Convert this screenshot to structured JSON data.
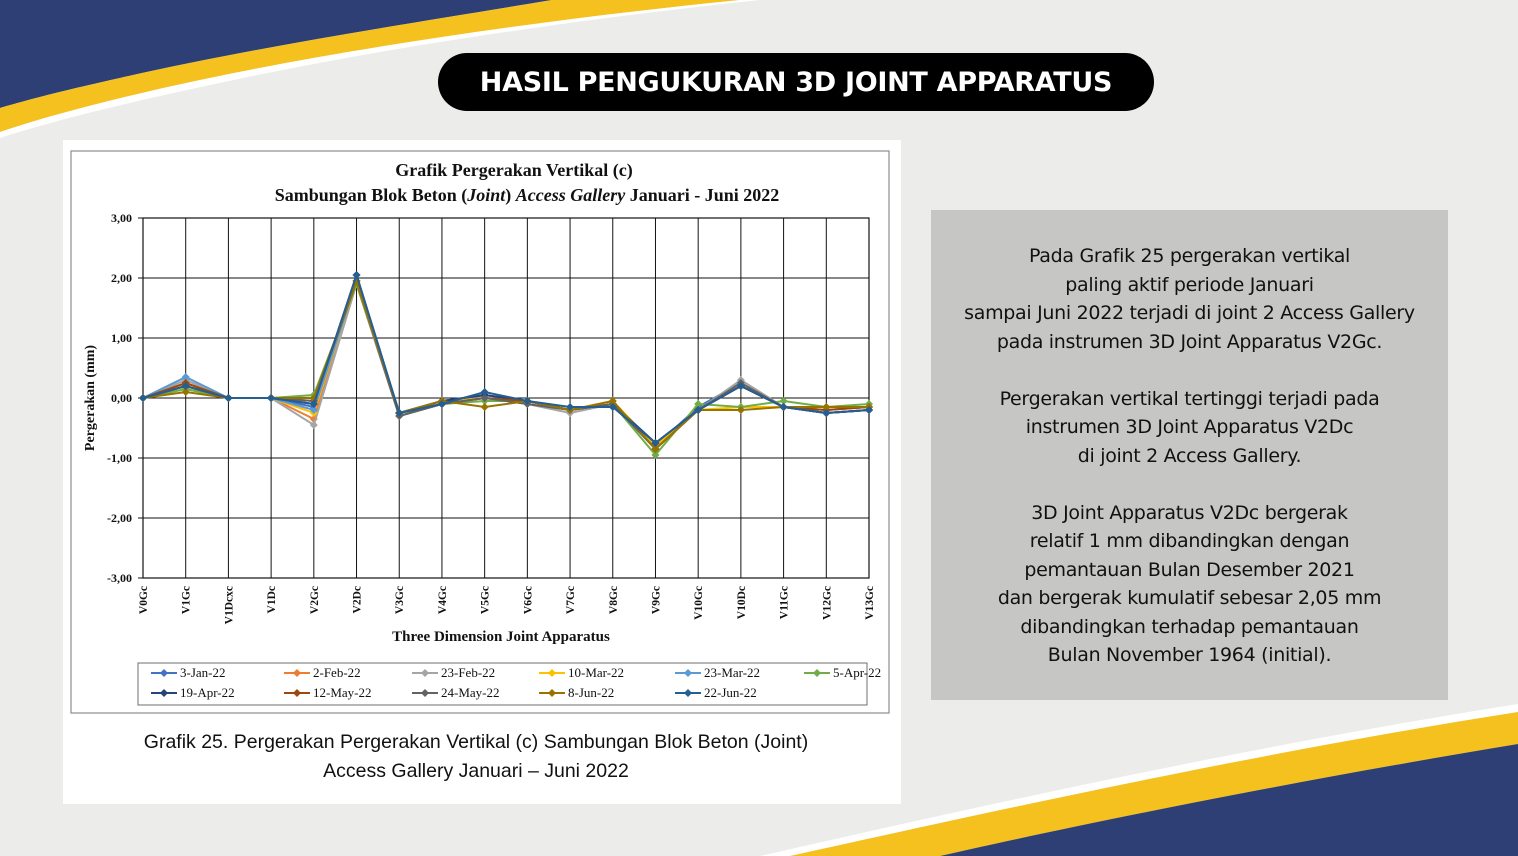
{
  "slide": {
    "title": "HASIL PENGUKURAN 3D JOINT APPARATUS",
    "caption_lines": [
      "Grafik 25. Pergerakan Pergerakan Vertikal (c) Sambungan Blok Beton (Joint)",
      "Access Gallery Januari – Juni 2022"
    ],
    "info_paragraphs": [
      [
        "Pada Grafik 25 pergerakan vertikal",
        "paling aktif periode Januari",
        "sampai Juni 2022 terjadi di joint 2 Access Gallery",
        "pada instrumen 3D Joint Apparatus V2Gc."
      ],
      [
        "Pergerakan vertikal tertinggi terjadi pada",
        "instrumen 3D Joint Apparatus V2Dc",
        "di joint 2 Access Gallery."
      ],
      [
        "3D Joint Apparatus V2Dc bergerak",
        "relatif 1 mm dibandingkan dengan",
        "pemantauan Bulan Desember 2021",
        "dan bergerak kumulatif sebesar 2,05 mm",
        "dibandingkan terhadap pemantauan",
        "Bulan November 1964 (initial)."
      ]
    ],
    "colors": {
      "navy": "#2e3f76",
      "gold": "#f4c11f",
      "background": "#ececea",
      "info_box": "#c6c6c5"
    }
  },
  "chart_data": {
    "type": "line",
    "title_line1": "Grafik Pergerakan Vertikal (c)",
    "title_line2_parts": [
      {
        "text": "Sambungan Blok Beton (",
        "italic": false
      },
      {
        "text": "Joint",
        "italic": true
      },
      {
        "text": ") ",
        "italic": false
      },
      {
        "text": "Access Gallery",
        "italic": true
      },
      {
        "text": " Januari - Juni 2022",
        "italic": false
      }
    ],
    "xlabel": "Three Dimension Joint Apparatus",
    "ylabel": "Pergerakan (mm)",
    "ylim": [
      -3,
      3
    ],
    "yticks": [
      3,
      2,
      1,
      0,
      -1,
      -2,
      -3
    ],
    "ytick_labels": [
      "3,00",
      "2,00",
      "1,00",
      "0,00",
      "-1,00",
      "-2,00",
      "-3,00"
    ],
    "grid": true,
    "legend_position": "bottom",
    "categories": [
      "V0Gc",
      "V1Gc",
      "V1Dcxc",
      "V1Dc",
      "V2Gc",
      "V2Dc",
      "V3Gc",
      "V4Gc",
      "V5Gc",
      "V6Gc",
      "V7Gc",
      "V8Gc",
      "V9Gc",
      "V10Gc",
      "V10Dc",
      "V11Gc",
      "V12Gc",
      "V13Gc"
    ],
    "series": [
      {
        "name": "3-Jan-22",
        "color": "#4472c4",
        "values": [
          0,
          0.3,
          0,
          0,
          -0.15,
          1.95,
          -0.25,
          -0.1,
          0.05,
          -0.05,
          -0.2,
          -0.1,
          -0.8,
          -0.15,
          0.25,
          -0.15,
          -0.25,
          -0.2
        ]
      },
      {
        "name": "2-Feb-22",
        "color": "#ed7d31",
        "values": [
          0,
          0.25,
          0,
          0,
          -0.35,
          1.9,
          -0.3,
          -0.1,
          0.0,
          -0.05,
          -0.2,
          -0.1,
          -0.85,
          -0.2,
          0.2,
          -0.15,
          -0.2,
          -0.15
        ]
      },
      {
        "name": "23-Feb-22",
        "color": "#a5a5a5",
        "values": [
          0,
          0.3,
          0,
          0,
          -0.45,
          1.9,
          -0.3,
          -0.1,
          0.0,
          -0.1,
          -0.25,
          -0.1,
          -0.85,
          -0.2,
          0.3,
          -0.15,
          -0.2,
          -0.15
        ]
      },
      {
        "name": "10-Mar-22",
        "color": "#ffc000",
        "values": [
          0,
          0.15,
          0,
          0,
          -0.25,
          1.95,
          -0.25,
          -0.05,
          0.0,
          -0.05,
          -0.2,
          -0.05,
          -0.8,
          -0.2,
          -0.15,
          -0.15,
          -0.15,
          -0.15
        ]
      },
      {
        "name": "23-Mar-22",
        "color": "#5b9bd5",
        "values": [
          0,
          0.35,
          0,
          0,
          -0.2,
          1.95,
          -0.25,
          -0.05,
          0.05,
          -0.05,
          -0.2,
          -0.1,
          -0.75,
          -0.2,
          0.2,
          -0.15,
          -0.25,
          -0.2
        ]
      },
      {
        "name": "5-Apr-22",
        "color": "#70ad47",
        "values": [
          0,
          0.15,
          0,
          0,
          0.05,
          1.9,
          -0.25,
          -0.1,
          -0.05,
          -0.05,
          -0.2,
          -0.1,
          -0.95,
          -0.1,
          -0.15,
          -0.05,
          -0.15,
          -0.1
        ]
      },
      {
        "name": "19-Apr-22",
        "color": "#264478",
        "values": [
          0,
          0.2,
          0,
          0,
          -0.1,
          2.05,
          -0.25,
          -0.05,
          0.05,
          -0.05,
          -0.2,
          -0.1,
          -0.75,
          -0.2,
          0.2,
          -0.15,
          -0.25,
          -0.2
        ]
      },
      {
        "name": "12-May-22",
        "color": "#9e480e",
        "values": [
          0,
          0.25,
          0,
          0,
          -0.05,
          1.95,
          -0.25,
          -0.1,
          0.0,
          -0.05,
          -0.2,
          -0.1,
          -0.85,
          -0.2,
          0.2,
          -0.15,
          -0.2,
          -0.15
        ]
      },
      {
        "name": "24-May-22",
        "color": "#636363",
        "values": [
          0,
          0.2,
          0,
          0,
          -0.05,
          1.95,
          -0.3,
          -0.1,
          0.0,
          -0.1,
          -0.2,
          -0.1,
          -0.85,
          -0.2,
          0.25,
          -0.15,
          -0.25,
          -0.2
        ]
      },
      {
        "name": "8-Jun-22",
        "color": "#997300",
        "values": [
          0,
          0.1,
          0,
          0,
          0.0,
          1.95,
          -0.25,
          -0.05,
          -0.15,
          -0.05,
          -0.2,
          -0.05,
          -0.85,
          -0.2,
          -0.2,
          -0.15,
          -0.15,
          -0.15
        ]
      },
      {
        "name": "22-Jun-22",
        "color": "#255e91",
        "values": [
          0,
          0.2,
          0,
          0,
          -0.1,
          2.05,
          -0.25,
          -0.1,
          0.1,
          -0.05,
          -0.15,
          -0.15,
          -0.75,
          -0.2,
          0.2,
          -0.15,
          -0.25,
          -0.2
        ]
      }
    ]
  }
}
